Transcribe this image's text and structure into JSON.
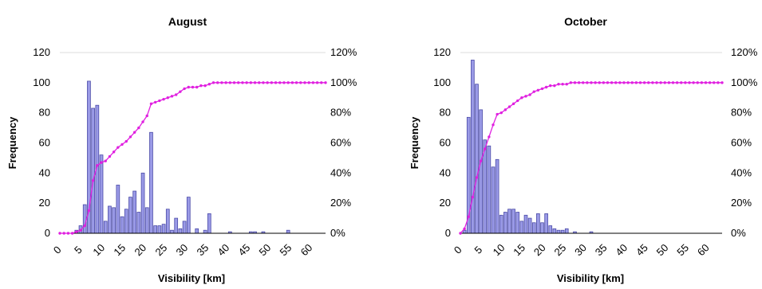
{
  "colors": {
    "bar_fill": "#9a9ae6",
    "bar_stroke": "#4b4ba8",
    "cumulative_line": "#e020e0"
  },
  "chart_data": [
    {
      "type": "bar",
      "title": "August",
      "xlabel": "Visibility [km]",
      "ylabel": "Frequency",
      "xlim": [
        0,
        64
      ],
      "ylim": [
        0,
        120
      ],
      "y2lim": [
        0,
        1.2
      ],
      "x_ticks": [
        "0",
        "5",
        "10",
        "15",
        "20",
        "25",
        "30",
        "35",
        "40",
        "45",
        "50",
        "55",
        "60"
      ],
      "y_ticks": [
        "0",
        "20",
        "40",
        "60",
        "80",
        "100",
        "120"
      ],
      "y2_ticks": [
        "0%",
        "20%",
        "40%",
        "60%",
        "80%",
        "100%",
        "120%"
      ],
      "grid": false,
      "series": [
        {
          "role": "frequency bars",
          "x": [
            4,
            5,
            6,
            7,
            8,
            9,
            10,
            11,
            12,
            13,
            14,
            15,
            16,
            17,
            18,
            19,
            20,
            21,
            22,
            23,
            24,
            25,
            26,
            27,
            28,
            29,
            30,
            31,
            33,
            35,
            36,
            41,
            46,
            47,
            49,
            55
          ],
          "values": [
            2,
            5,
            19,
            101,
            83,
            85,
            52,
            8,
            18,
            17,
            32,
            11,
            16,
            24,
            28,
            14,
            40,
            17,
            67,
            5,
            5,
            6,
            16,
            2,
            10,
            3,
            8,
            24,
            3,
            2,
            13,
            1,
            1,
            1,
            1,
            2
          ]
        },
        {
          "role": "cumulative percentage line",
          "x": [
            0,
            1,
            2,
            3,
            4,
            5,
            6,
            7,
            8,
            9,
            10,
            11,
            12,
            13,
            14,
            15,
            16,
            17,
            18,
            19,
            20,
            21,
            22,
            23,
            24,
            25,
            26,
            27,
            28,
            29,
            30,
            31,
            32,
            33,
            34,
            35,
            36,
            37,
            38,
            39,
            40,
            41,
            42,
            43,
            44,
            45,
            46,
            47,
            48,
            49,
            50,
            51,
            52,
            53,
            54,
            55,
            56,
            57,
            58,
            59,
            60,
            61,
            62,
            63,
            64
          ],
          "values": [
            0,
            0,
            0,
            0,
            0.01,
            0.02,
            0.05,
            0.15,
            0.35,
            0.45,
            0.47,
            0.48,
            0.51,
            0.54,
            0.57,
            0.59,
            0.61,
            0.64,
            0.67,
            0.7,
            0.74,
            0.78,
            0.86,
            0.87,
            0.88,
            0.89,
            0.9,
            0.91,
            0.92,
            0.94,
            0.96,
            0.97,
            0.97,
            0.97,
            0.98,
            0.98,
            0.99,
            1,
            1,
            1,
            1,
            1,
            1,
            1,
            1,
            1,
            1,
            1,
            1,
            1,
            1,
            1,
            1,
            1,
            1,
            1,
            1,
            1,
            1,
            1,
            1,
            1,
            1,
            1,
            1
          ]
        }
      ]
    },
    {
      "type": "bar",
      "title": "October",
      "xlabel": "Visibility [km]",
      "ylabel": "Frequency",
      "xlim": [
        0,
        64
      ],
      "ylim": [
        0,
        120
      ],
      "y2lim": [
        0,
        1.2
      ],
      "x_ticks": [
        "0",
        "5",
        "10",
        "15",
        "20",
        "25",
        "30",
        "35",
        "40",
        "45",
        "50",
        "55",
        "60"
      ],
      "y_ticks": [
        "0",
        "20",
        "40",
        "60",
        "80",
        "100",
        "120"
      ],
      "y2_ticks": [
        "0%",
        "20%",
        "40%",
        "60%",
        "80%",
        "100%",
        "120%"
      ],
      "grid": false,
      "series": [
        {
          "role": "frequency bars",
          "x": [
            1,
            2,
            3,
            4,
            5,
            6,
            7,
            8,
            9,
            10,
            11,
            12,
            13,
            14,
            15,
            16,
            17,
            18,
            19,
            20,
            21,
            22,
            23,
            24,
            25,
            26,
            28,
            32
          ],
          "values": [
            2,
            77,
            115,
            99,
            82,
            62,
            58,
            44,
            49,
            12,
            14,
            16,
            16,
            14,
            8,
            12,
            10,
            7,
            13,
            7,
            13,
            5,
            3,
            2,
            2,
            3,
            1,
            1
          ]
        },
        {
          "role": "cumulative percentage line",
          "x": [
            0,
            1,
            2,
            3,
            4,
            5,
            6,
            7,
            8,
            9,
            10,
            11,
            12,
            13,
            14,
            15,
            16,
            17,
            18,
            19,
            20,
            21,
            22,
            23,
            24,
            25,
            26,
            27,
            28,
            29,
            30,
            31,
            32,
            33,
            34,
            35,
            36,
            37,
            38,
            39,
            40,
            41,
            42,
            43,
            44,
            45,
            46,
            47,
            48,
            49,
            50,
            51,
            52,
            53,
            54,
            55,
            56,
            57,
            58,
            59,
            60,
            61,
            62,
            63,
            64
          ],
          "values": [
            0,
            0.03,
            0.11,
            0.24,
            0.37,
            0.48,
            0.56,
            0.64,
            0.72,
            0.79,
            0.8,
            0.82,
            0.84,
            0.86,
            0.88,
            0.9,
            0.91,
            0.92,
            0.94,
            0.95,
            0.96,
            0.97,
            0.98,
            0.98,
            0.99,
            0.99,
            0.99,
            1,
            1,
            1,
            1,
            1,
            1,
            1,
            1,
            1,
            1,
            1,
            1,
            1,
            1,
            1,
            1,
            1,
            1,
            1,
            1,
            1,
            1,
            1,
            1,
            1,
            1,
            1,
            1,
            1,
            1,
            1,
            1,
            1,
            1,
            1,
            1,
            1,
            1
          ]
        }
      ]
    }
  ]
}
